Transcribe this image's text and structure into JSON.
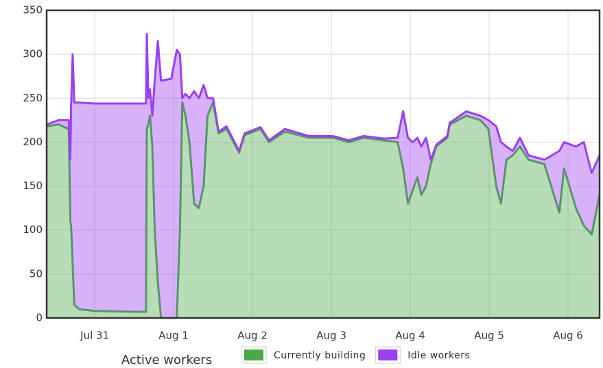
{
  "chart_data": {
    "type": "stacked-area",
    "xlabel": "Active workers",
    "x": [
      -0.61,
      -0.46,
      -0.33,
      -0.31,
      -0.3,
      -0.28,
      -0.26,
      -0.2,
      0,
      0.5,
      0.65,
      0.66,
      0.68,
      0.7,
      0.73,
      0.76,
      0.8,
      0.84,
      0.97,
      1.04,
      1.08,
      1.11,
      1.15,
      1.2,
      1.26,
      1.32,
      1.38,
      1.43,
      1.5,
      1.57,
      1.67,
      1.83,
      1.9,
      2.1,
      2.21,
      2.41,
      2.71,
      3.02,
      3.22,
      3.41,
      3.67,
      3.84,
      3.91,
      3.97,
      4.03,
      4.09,
      4.14,
      4.2,
      4.26,
      4.33,
      4.47,
      4.5,
      4.71,
      4.89,
      4.99,
      5.09,
      5.15,
      5.22,
      5.3,
      5.39,
      5.5,
      5.7,
      5.89,
      5.95,
      6.1,
      6.2,
      6.3,
      6.4
    ],
    "series": [
      {
        "name": "Currently building",
        "color": "#4aa84a",
        "values": [
          218,
          220,
          215,
          110,
          105,
          60,
          15,
          10,
          8,
          7,
          7,
          215,
          220,
          230,
          195,
          100,
          40,
          0,
          0,
          0,
          100,
          245,
          230,
          200,
          130,
          125,
          150,
          230,
          245,
          210,
          215,
          188,
          208,
          215,
          200,
          212,
          205,
          205,
          200,
          205,
          202,
          200,
          170,
          130,
          145,
          160,
          140,
          150,
          175,
          195,
          205,
          220,
          230,
          225,
          215,
          150,
          130,
          180,
          185,
          195,
          180,
          175,
          120,
          170,
          125,
          105,
          95,
          140
        ]
      },
      {
        "name": "Idle workers",
        "color": "#9b3ff2",
        "values": [
          2,
          5,
          10,
          70,
          135,
          240,
          230,
          235,
          236,
          237,
          237,
          108,
          30,
          30,
          35,
          170,
          275,
          270,
          272,
          305,
          200,
          5,
          25,
          50,
          128,
          125,
          115,
          20,
          5,
          2,
          3,
          2,
          2,
          2,
          2,
          3,
          2,
          2,
          2,
          2,
          2,
          5,
          65,
          75,
          55,
          45,
          55,
          55,
          5,
          2,
          2,
          2,
          5,
          5,
          10,
          68,
          70,
          15,
          5,
          10,
          5,
          5,
          70,
          30,
          70,
          95,
          70,
          45
        ]
      }
    ],
    "xlim": [
      -0.61,
      6.4
    ],
    "xticks": [
      {
        "value": 0,
        "label": "Jul 31"
      },
      {
        "value": 1,
        "label": "Aug 1"
      },
      {
        "value": 2,
        "label": "Aug 2"
      },
      {
        "value": 3,
        "label": "Aug 3"
      },
      {
        "value": 4,
        "label": "Aug 4"
      },
      {
        "value": 5,
        "label": "Aug 5"
      },
      {
        "value": 6,
        "label": "Aug 6"
      }
    ],
    "ylim": [
      0,
      350
    ],
    "yticks": [
      0,
      50,
      100,
      150,
      200,
      250,
      300,
      350
    ],
    "grid": true,
    "legend": "bottom"
  }
}
